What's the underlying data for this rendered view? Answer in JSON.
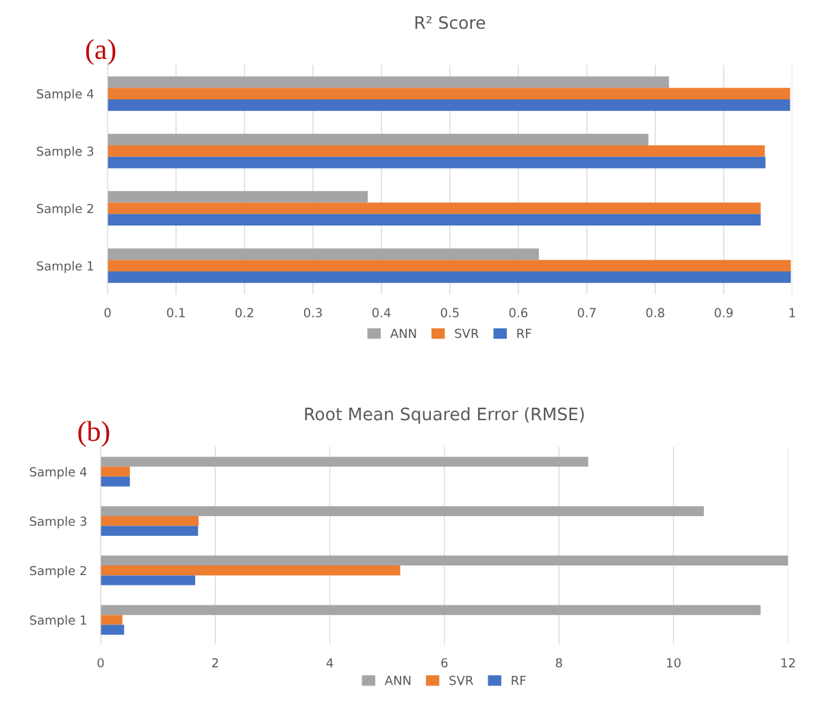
{
  "chart_data": [
    {
      "type": "bar",
      "orientation": "horizontal",
      "title": "R² Score",
      "annotations": [
        "(a)"
      ],
      "categories": [
        "Sample 4",
        "Sample 3",
        "Sample 2",
        "Sample 1"
      ],
      "series": [
        {
          "name": "ANN",
          "color": "#a5a5a5",
          "values": [
            0.82,
            0.79,
            0.38,
            0.63
          ]
        },
        {
          "name": "SVR",
          "color": "#ed7d31",
          "values": [
            0.997,
            0.96,
            0.954,
            0.998
          ]
        },
        {
          "name": "RF",
          "color": "#4472c4",
          "values": [
            0.997,
            0.961,
            0.954,
            0.998
          ]
        }
      ],
      "xlim": [
        0,
        1
      ],
      "xticks": [
        0,
        0.1,
        0.2,
        0.3,
        0.4,
        0.5,
        0.6,
        0.7,
        0.8,
        0.9,
        1
      ],
      "grid": "x",
      "legend": "bottom"
    },
    {
      "type": "bar",
      "orientation": "horizontal",
      "title": "Root Mean Squared Error (RMSE)",
      "annotations": [
        "(b)"
      ],
      "categories": [
        "Sample 4",
        "Sample 3",
        "Sample 2",
        "Sample 1"
      ],
      "series": [
        {
          "name": "ANN",
          "color": "#a5a5a5",
          "values": [
            8.51,
            10.53,
            12.0,
            11.52
          ]
        },
        {
          "name": "SVR",
          "color": "#ed7d31",
          "values": [
            0.51,
            1.71,
            5.23,
            0.38
          ]
        },
        {
          "name": "RF",
          "color": "#4472c4",
          "values": [
            0.51,
            1.7,
            1.65,
            0.41
          ]
        }
      ],
      "xlim": [
        0,
        12
      ],
      "xticks": [
        0,
        2,
        4,
        6,
        8,
        10,
        12
      ],
      "grid": "x",
      "legend": "bottom"
    }
  ]
}
